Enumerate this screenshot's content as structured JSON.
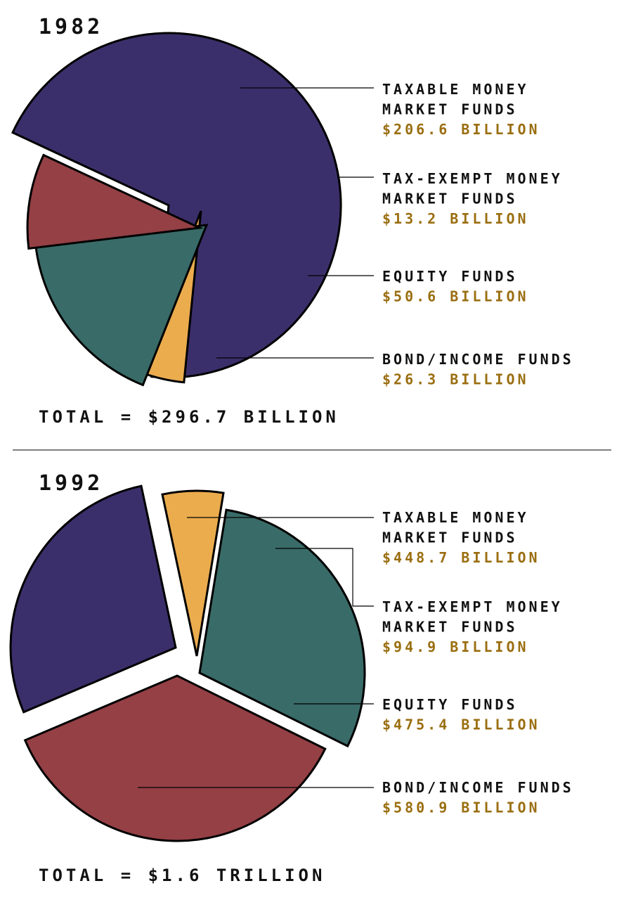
{
  "chart_data": [
    {
      "type": "pie",
      "title": "1982",
      "total_label": "TOTAL = $296.7 BILLION",
      "slices": [
        {
          "line1": "TAXABLE MONEY",
          "line2": "MARKET FUNDS",
          "value_label": "$206.6 BILLION",
          "value": 206.6,
          "color": "#3b2f6b"
        },
        {
          "line1": "TAX-EXEMPT MONEY",
          "line2": "MARKET FUNDS",
          "value_label": "$13.2 BILLION",
          "value": 13.2,
          "color": "#ebac4e"
        },
        {
          "line1": "EQUITY FUNDS",
          "line2": "",
          "value_label": "$50.6 BILLION",
          "value": 50.6,
          "color": "#396b68"
        },
        {
          "line1": "BOND/INCOME FUNDS",
          "line2": "",
          "value_label": "$26.3 BILLION",
          "value": 26.3,
          "color": "#944045"
        }
      ]
    },
    {
      "type": "pie",
      "title": "1992",
      "total_label": "TOTAL = $1.6 TRILLION",
      "slices": [
        {
          "line1": "TAXABLE MONEY",
          "line2": "MARKET FUNDS",
          "value_label": "$448.7 BILLION",
          "value": 448.7,
          "color": "#3b2f6b"
        },
        {
          "line1": "TAX-EXEMPT MONEY",
          "line2": "MARKET FUNDS",
          "value_label": "$94.9 BILLION",
          "value": 94.9,
          "color": "#ebac4e"
        },
        {
          "line1": "EQUITY FUNDS",
          "line2": "",
          "value_label": "$475.4 BILLION",
          "value": 475.4,
          "color": "#396b68"
        },
        {
          "line1": "BOND/INCOME FUNDS",
          "line2": "",
          "value_label": "$580.9 BILLION",
          "value": 580.9,
          "color": "#944045"
        }
      ]
    }
  ]
}
